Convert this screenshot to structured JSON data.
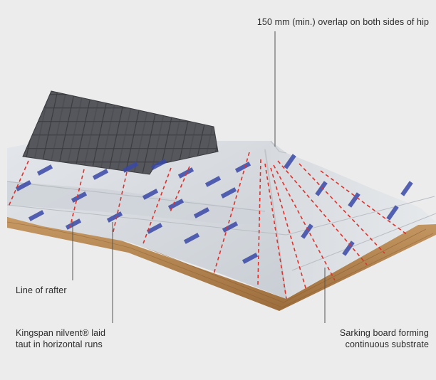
{
  "callouts": {
    "hip_overlap": "150 mm (min.) overlap on both sides of hip",
    "rafter_line": "Line of rafter",
    "membrane_line1": "Kingspan nilvent® laid",
    "membrane_line2": "taut in horizontal runs",
    "sarking_line1": "Sarking board forming",
    "sarking_line2": "continuous substrate"
  },
  "colors": {
    "background": "#ececec",
    "membrane": "#d9dde1",
    "membrane_shadow": "#c4c9ce",
    "slate": "#4a4c50",
    "timber": "#b98c58",
    "rafter_marker": "#e0312b",
    "logo_blue": "#3a49a8",
    "leader": "#555555"
  }
}
